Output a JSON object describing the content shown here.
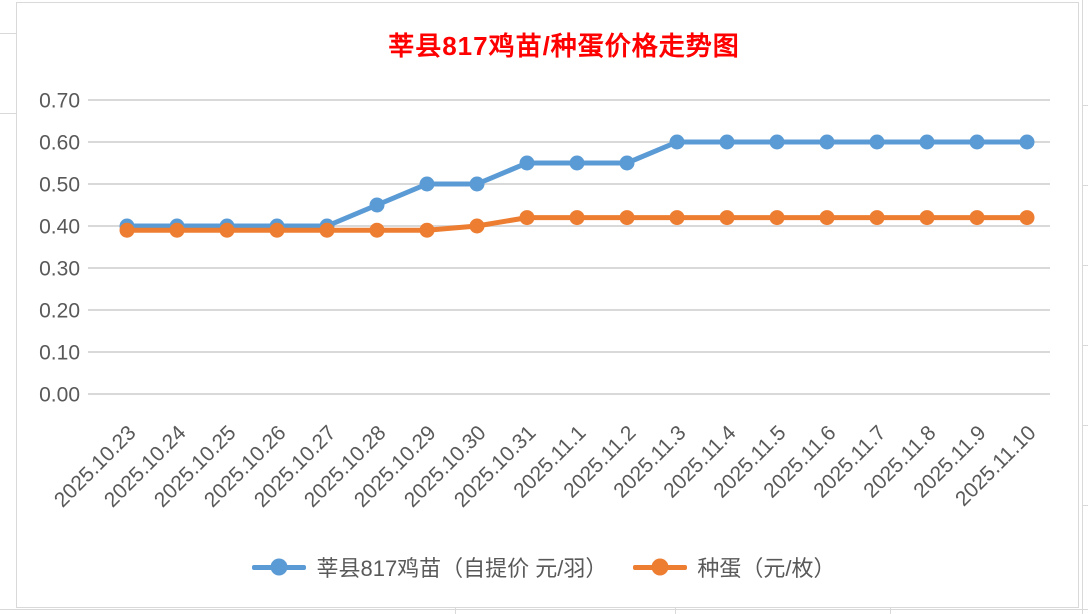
{
  "title": {
    "text": "莘县817鸡苗/种蛋价格走势图"
  },
  "chart_data": {
    "type": "line",
    "title": "莘县817鸡苗/种蛋价格走势图",
    "categories": [
      "2025.10.23",
      "2025.10.24",
      "2025.10.25",
      "2025.10.26",
      "2025.10.27",
      "2025.10.28",
      "2025.10.29",
      "2025.10.30",
      "2025.10.31",
      "2025.11.1",
      "2025.11.2",
      "2025.11.3",
      "2025.11.4",
      "2025.11.5",
      "2025.11.6",
      "2025.11.7",
      "2025.11.8",
      "2025.11.9",
      "2025.11.10"
    ],
    "series": [
      {
        "name": "莘县817鸡苗（自提价 元/羽）",
        "color": "#5B9BD5",
        "values": [
          0.4,
          0.4,
          0.4,
          0.4,
          0.4,
          0.45,
          0.5,
          0.5,
          0.55,
          0.55,
          0.55,
          0.6,
          0.6,
          0.6,
          0.6,
          0.6,
          0.6,
          0.6,
          0.6
        ]
      },
      {
        "name": "种蛋（元/枚）",
        "color": "#ED7D31",
        "values": [
          0.39,
          0.39,
          0.39,
          0.39,
          0.39,
          0.39,
          0.39,
          0.4,
          0.42,
          0.42,
          0.42,
          0.42,
          0.42,
          0.42,
          0.42,
          0.42,
          0.42,
          0.42,
          0.42
        ]
      }
    ],
    "ylim": [
      0.0,
      0.7
    ],
    "yticks": [
      "0.00",
      "0.10",
      "0.20",
      "0.30",
      "0.40",
      "0.50",
      "0.60",
      "0.70"
    ],
    "grid": true,
    "legend_position": "bottom",
    "marker": "circle"
  },
  "colors": {
    "title": "#FF0000",
    "axis_text": "#595959",
    "gridline": "#D9D9D9",
    "legend_text": "#595959"
  }
}
